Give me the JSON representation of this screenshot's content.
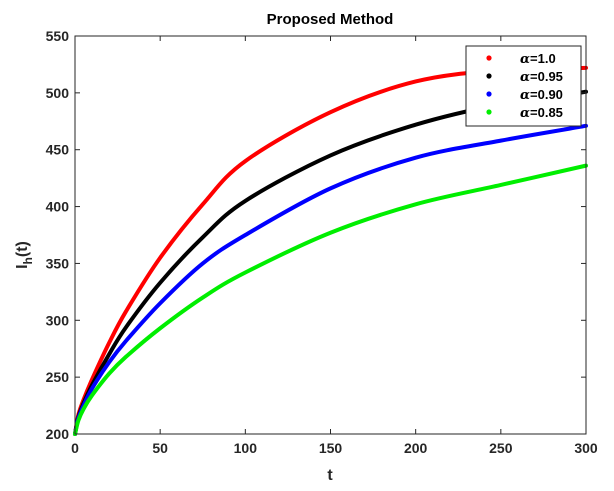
{
  "chart_data": {
    "type": "line",
    "title": "Proposed Method",
    "xlabel": "t",
    "ylabel": "I_h(t)",
    "xlim": [
      0,
      300
    ],
    "ylim": [
      200,
      550
    ],
    "xticks": [
      0,
      50,
      100,
      150,
      200,
      250,
      300
    ],
    "yticks": [
      200,
      250,
      300,
      350,
      400,
      450,
      500,
      550
    ],
    "grid": false,
    "legend_position": "top-right",
    "x": [
      0,
      2,
      5,
      10,
      20,
      30,
      50,
      75,
      100,
      150,
      200,
      250,
      300
    ],
    "series": [
      {
        "name": "α=1.0",
        "color": "#ff0000",
        "values": [
          200,
          217,
          230,
          248,
          280,
          308,
          355,
          402,
          440,
          483,
          510,
          520,
          522
        ]
      },
      {
        "name": "α=0.95",
        "color": "#000000",
        "values": [
          200,
          215,
          227,
          243,
          270,
          294,
          333,
          373,
          405,
          445,
          472,
          490,
          501
        ]
      },
      {
        "name": "α=0.90",
        "color": "#0000ff",
        "values": [
          200,
          214,
          225,
          240,
          263,
          282,
          315,
          350,
          375,
          416,
          443,
          458,
          471
        ]
      },
      {
        "name": "α=0.85",
        "color": "#00ee00",
        "values": [
          200,
          212,
          222,
          234,
          253,
          268,
          293,
          320,
          342,
          377,
          402,
          419,
          436
        ]
      }
    ]
  }
}
